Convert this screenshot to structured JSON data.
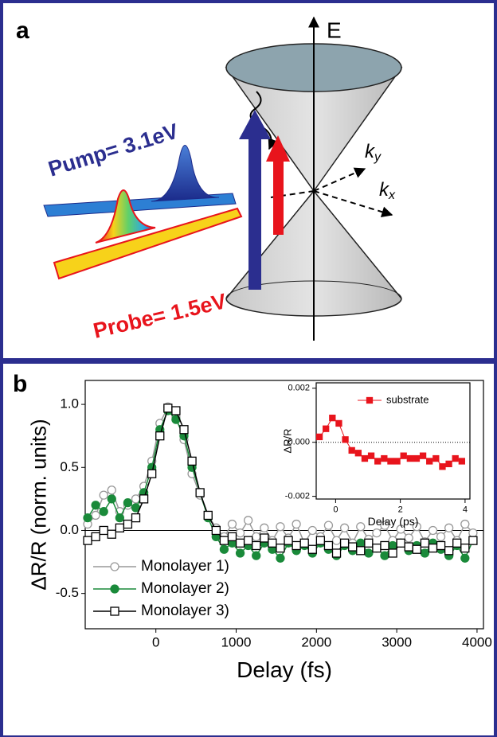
{
  "panel_a": {
    "label": "a",
    "energy_axis": "E",
    "pump": "Pump= 3.1eV",
    "probe": "Probe= 1.5eV",
    "momentum_axes": [
      {
        "symbol": "k",
        "subscript": "y"
      },
      {
        "symbol": "k",
        "subscript": "x"
      }
    ]
  },
  "panel_b": {
    "label": "b"
  },
  "chart_data": [
    {
      "type": "line",
      "xlabel": "Delay (fs)",
      "ylabel": "ΔR/R (norm. units)",
      "x": [
        -850,
        -750,
        -650,
        -550,
        -450,
        -350,
        -250,
        -150,
        -50,
        50,
        150,
        250,
        350,
        450,
        550,
        650,
        750,
        850,
        950,
        1050,
        1150,
        1250,
        1350,
        1450,
        1550,
        1650,
        1750,
        1850,
        1950,
        2050,
        2150,
        2250,
        2350,
        2450,
        2550,
        2650,
        2750,
        2850,
        2950,
        3050,
        3150,
        3250,
        3350,
        3450,
        3550,
        3650,
        3750,
        3850,
        3950
      ],
      "series": [
        {
          "name": "Monolayer 1)",
          "color": "#999999",
          "marker": "circle-open",
          "values": [
            0.05,
            0.12,
            0.28,
            0.32,
            0.15,
            0.2,
            0.25,
            0.35,
            0.55,
            0.85,
            0.98,
            0.9,
            0.72,
            0.45,
            0.28,
            0.12,
            0.02,
            -0.05,
            0.05,
            -0.02,
            0.08,
            -0.05,
            0.02,
            -0.08,
            0.03,
            -0.06,
            0.05,
            -0.1,
            0.0,
            -0.05,
            0.04,
            -0.08,
            0.02,
            -0.1,
            0.03,
            -0.07,
            -0.02,
            0.04,
            -0.08,
            0.01,
            -0.06,
            0.03,
            -0.09,
            0.0,
            -0.05,
            0.02,
            -0.08,
            0.05,
            -0.02
          ]
        },
        {
          "name": "Monolayer 2)",
          "color": "#1a8a3a",
          "marker": "circle-filled",
          "values": [
            0.1,
            0.2,
            0.15,
            0.25,
            0.1,
            0.22,
            0.18,
            0.3,
            0.5,
            0.8,
            0.95,
            0.88,
            0.75,
            0.5,
            0.3,
            0.1,
            -0.05,
            -0.15,
            -0.1,
            -0.18,
            -0.12,
            -0.2,
            -0.1,
            -0.15,
            -0.22,
            -0.1,
            -0.16,
            -0.12,
            -0.18,
            -0.1,
            -0.15,
            -0.2,
            -0.12,
            -0.16,
            -0.1,
            -0.18,
            -0.14,
            -0.2,
            -0.12,
            -0.1,
            -0.16,
            -0.12,
            -0.18,
            -0.1,
            -0.15,
            -0.2,
            -0.12,
            -0.22,
            -0.08
          ]
        },
        {
          "name": "Monolayer 3)",
          "color": "#000000",
          "marker": "square-open",
          "values": [
            -0.08,
            -0.05,
            0.0,
            -0.03,
            0.02,
            0.05,
            0.1,
            0.25,
            0.45,
            0.75,
            0.97,
            0.95,
            0.8,
            0.55,
            0.3,
            0.12,
            0.0,
            -0.08,
            -0.05,
            -0.1,
            -0.08,
            -0.12,
            -0.06,
            -0.1,
            -0.14,
            -0.08,
            -0.12,
            -0.1,
            -0.15,
            -0.08,
            -0.12,
            -0.18,
            -0.1,
            -0.13,
            -0.16,
            -0.1,
            -0.14,
            -0.12,
            -0.18,
            -0.1,
            -0.13,
            -0.15,
            -0.1,
            -0.14,
            -0.12,
            -0.16,
            -0.1,
            -0.14,
            -0.08
          ]
        }
      ],
      "xlim": [
        -880,
        4080
      ],
      "ylim": [
        -0.78,
        1.19
      ],
      "xticks": [
        0,
        1000,
        2000,
        3000,
        4000
      ],
      "yticks": [
        {
          "value": 1,
          "label": "1.0"
        },
        {
          "value": 0.5,
          "label": "0.5"
        },
        {
          "value": 0,
          "label": "0.0"
        },
        {
          "value": -0.5,
          "label": "-0.5"
        }
      ],
      "zero_line": true,
      "legend": "lower-left"
    },
    {
      "type": "line",
      "xlabel": "Delay (ps)",
      "ylabel": "ΔR/R",
      "x": [
        -0.5,
        -0.3,
        -0.1,
        0.1,
        0.3,
        0.5,
        0.7,
        0.9,
        1.1,
        1.3,
        1.5,
        1.7,
        1.9,
        2.1,
        2.3,
        2.5,
        2.7,
        2.9,
        3.1,
        3.3,
        3.5,
        3.7,
        3.9
      ],
      "series": [
        {
          "name": "substrate",
          "color": "#e8141c",
          "marker": "square-filled",
          "values": [
            0.0002,
            0.0005,
            0.0009,
            0.0007,
            0.0001,
            -0.0003,
            -0.0004,
            -0.0006,
            -0.0005,
            -0.0007,
            -0.0006,
            -0.0007,
            -0.0007,
            -0.0005,
            -0.0006,
            -0.0006,
            -0.0005,
            -0.0007,
            -0.0006,
            -0.0009,
            -0.0008,
            -0.0006,
            -0.0007
          ]
        }
      ],
      "xlim": [
        -0.6,
        4.15
      ],
      "ylim": [
        -0.0021,
        0.0022
      ],
      "xticks": [
        0,
        2,
        4
      ],
      "yticks": [
        0.002,
        {
          "value": 0,
          "label": "0.000"
        },
        -0.002
      ],
      "zero_line": true,
      "legend": "upper-center"
    }
  ]
}
